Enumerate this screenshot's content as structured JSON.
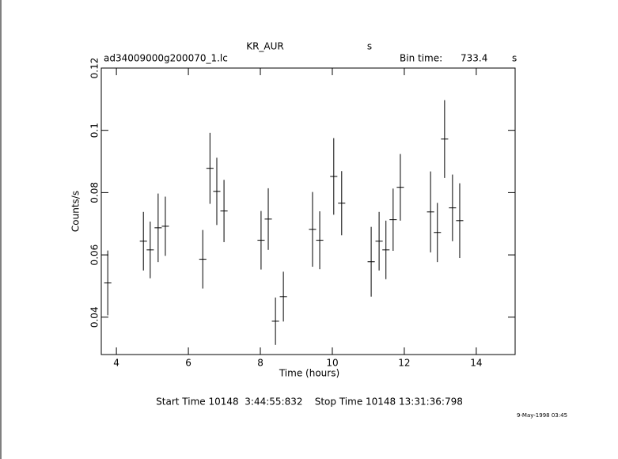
{
  "chart_data": {
    "type": "errorbar",
    "title": "KR_AUR",
    "title_suffix": "s",
    "file_name": "ad34009000g200070_1.lc",
    "bin_time_label": "Bin time:",
    "bin_time": "733.4",
    "bin_time_unit": "s",
    "x_label": "Time (hours)",
    "y_label": "Counts/s",
    "footer": "Start Time 10148  3:44:55:832    Stop Time 10148 13:31:36:798",
    "date_stamp": "9-May-1998 03:45",
    "xlim": [
      3.58,
      15.08
    ],
    "ylim": [
      0.028,
      0.12
    ],
    "xticks": [
      4,
      6,
      8,
      10,
      12,
      14
    ],
    "yticks": [
      0.04,
      0.06,
      0.08,
      0.1,
      0.12
    ],
    "color": "#000000",
    "series": [
      {
        "x": [
          3.76,
          4.75,
          4.94,
          5.16,
          5.36,
          6.4,
          6.6,
          6.79,
          6.99,
          8.02,
          8.22,
          8.42,
          8.64,
          9.45,
          9.65,
          10.04,
          10.26,
          11.08,
          11.3,
          11.49,
          11.69,
          11.89,
          12.73,
          12.92,
          13.12,
          13.34,
          13.54
        ],
        "values": [
          0.051,
          0.0644,
          0.0616,
          0.0687,
          0.0692,
          0.0586,
          0.0878,
          0.0804,
          0.0741,
          0.0647,
          0.0715,
          0.0387,
          0.0466,
          0.0682,
          0.0647,
          0.0852,
          0.0766,
          0.0578,
          0.0644,
          0.0616,
          0.0713,
          0.0817,
          0.0738,
          0.0672,
          0.0972,
          0.0751,
          0.071
        ],
        "yerr": [
          0.0104,
          0.0094,
          0.0091,
          0.011,
          0.0095,
          0.0094,
          0.0114,
          0.0108,
          0.01,
          0.0094,
          0.0099,
          0.0076,
          0.008,
          0.012,
          0.0093,
          0.0123,
          0.0103,
          0.0112,
          0.0094,
          0.0094,
          0.01,
          0.0107,
          0.013,
          0.0095,
          0.0125,
          0.0107,
          0.012
        ],
        "xerr": [
          0.1,
          0.1,
          0.1,
          0.1,
          0.1,
          0.1,
          0.1,
          0.1,
          0.1,
          0.1,
          0.1,
          0.1,
          0.1,
          0.1,
          0.1,
          0.1,
          0.1,
          0.1,
          0.1,
          0.1,
          0.1,
          0.1,
          0.1,
          0.1,
          0.1,
          0.1,
          0.1
        ]
      }
    ]
  }
}
